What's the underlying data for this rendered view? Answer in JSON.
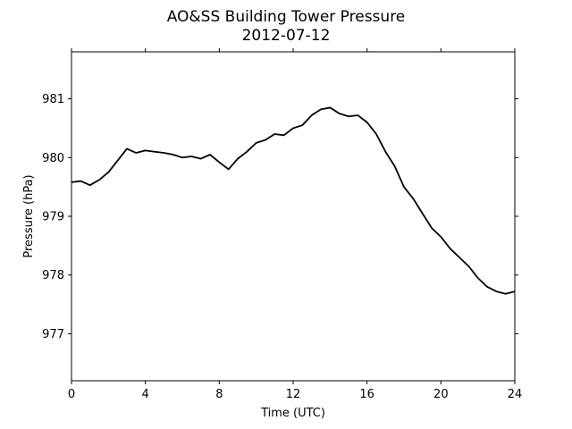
{
  "chart_data": {
    "type": "line",
    "title": "AO&SS Building Tower Pressure",
    "subtitle": "2012-07-12",
    "xlabel": "Time (UTC)",
    "ylabel": "Pressure (hPa)",
    "xlim": [
      0,
      24
    ],
    "ylim": [
      976.2,
      981.8
    ],
    "xticks": [
      0,
      4,
      8,
      12,
      16,
      20,
      24
    ],
    "yticks": [
      977,
      978,
      979,
      980,
      981
    ],
    "grid": false,
    "line_color": "#000000",
    "series": [
      {
        "x": [
          0,
          0.5,
          1,
          1.5,
          2,
          2.5,
          3,
          3.5,
          4,
          4.5,
          5,
          5.5,
          6,
          6.5,
          7,
          7.5,
          8,
          8.5,
          9,
          9.5,
          10,
          10.5,
          11,
          11.5,
          12,
          12.5,
          13,
          13.5,
          14,
          14.5,
          15,
          15.5,
          16,
          16.5,
          17,
          17.5,
          18,
          18.5,
          19,
          19.5,
          20,
          20.5,
          21,
          21.5,
          22,
          22.5,
          23,
          23.5,
          24
        ],
        "y": [
          979.58,
          979.6,
          979.53,
          979.62,
          979.75,
          979.95,
          980.15,
          980.08,
          980.12,
          980.1,
          980.08,
          980.05,
          980.0,
          980.02,
          979.98,
          980.05,
          979.92,
          979.8,
          979.98,
          980.1,
          980.25,
          980.3,
          980.4,
          980.38,
          980.5,
          980.55,
          980.72,
          980.82,
          980.85,
          980.75,
          980.7,
          980.72,
          980.6,
          980.4,
          980.1,
          979.85,
          979.5,
          979.3,
          979.05,
          978.8,
          978.65,
          978.45,
          978.3,
          978.15,
          977.95,
          977.8,
          977.72,
          977.68,
          977.72
        ]
      }
    ]
  }
}
